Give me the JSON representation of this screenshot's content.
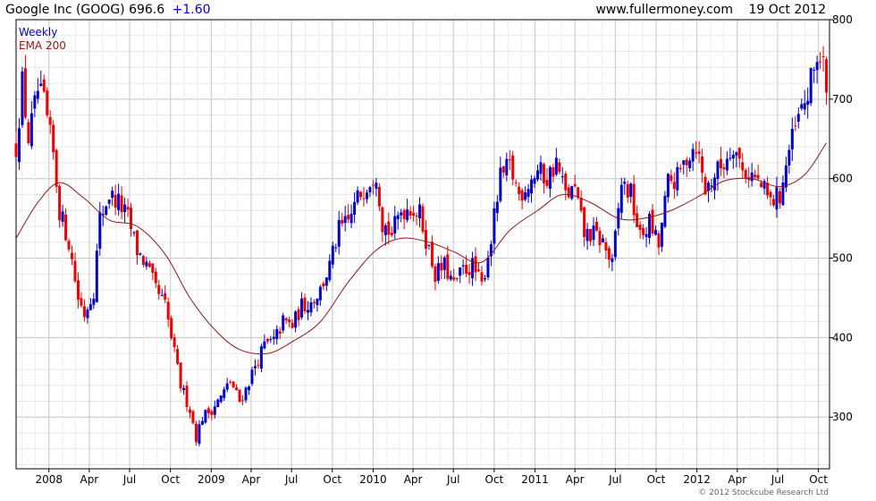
{
  "header": {
    "symbol_label": "Google Inc (GOOG) 696.6",
    "change": "+1.60",
    "source": "www.fullermoney.com",
    "date": "19 Oct 2012"
  },
  "legend": {
    "period": "Weekly",
    "indicator": "EMA 200"
  },
  "copyright": "© 2012 Stockcube Research Ltd",
  "colors": {
    "up": "#0000cc",
    "down": "#ee0000",
    "ema": "#8b1a1a",
    "grid": "#c8c8c8",
    "change": "#0000cc"
  },
  "chart_data": {
    "type": "candlestick",
    "title": "Google Inc (GOOG) 696.6 +1.60",
    "x_tick_labels": [
      "2008",
      "Apr",
      "Jul",
      "Oct",
      "2009",
      "Apr",
      "Jul",
      "Oct",
      "2010",
      "Apr",
      "Jul",
      "Oct",
      "2011",
      "Apr",
      "Jul",
      "Oct",
      "2012",
      "Apr",
      "Jul",
      "Oct"
    ],
    "x_tick_dates": [
      "2008-01-01",
      "2008-04-01",
      "2008-07-01",
      "2008-10-01",
      "2009-01-01",
      "2009-04-01",
      "2009-07-01",
      "2009-10-01",
      "2010-01-01",
      "2010-04-01",
      "2010-07-01",
      "2010-10-01",
      "2011-01-01",
      "2011-04-01",
      "2011-07-01",
      "2011-10-01",
      "2012-01-01",
      "2012-04-01",
      "2012-07-01",
      "2012-10-01"
    ],
    "x_range": [
      "2007-10-19",
      "2012-10-26"
    ],
    "y_ticks": [
      300,
      400,
      500,
      600,
      700,
      800
    ],
    "y_range": [
      235,
      800
    ],
    "y_axis_side": "right",
    "grid": true,
    "legend_position": "top-left",
    "price_path": [
      [
        "2007-10-19",
        640
      ],
      [
        "2007-11-02",
        720
      ],
      [
        "2007-11-16",
        650
      ],
      [
        "2007-12-07",
        710
      ],
      [
        "2007-12-21",
        695
      ],
      [
        "2008-01-11",
        630
      ],
      [
        "2008-01-25",
        560
      ],
      [
        "2008-02-15",
        520
      ],
      [
        "2008-03-07",
        450
      ],
      [
        "2008-03-21",
        430
      ],
      [
        "2008-04-11",
        460
      ],
      [
        "2008-04-25",
        550
      ],
      [
        "2008-05-16",
        580
      ],
      [
        "2008-06-06",
        570
      ],
      [
        "2008-06-27",
        550
      ],
      [
        "2008-07-18",
        510
      ],
      [
        "2008-08-08",
        490
      ],
      [
        "2008-08-29",
        460
      ],
      [
        "2008-09-19",
        440
      ],
      [
        "2008-10-10",
        380
      ],
      [
        "2008-10-24",
        340
      ],
      [
        "2008-11-14",
        310
      ],
      [
        "2008-11-28",
        275
      ],
      [
        "2008-12-12",
        300
      ],
      [
        "2009-01-02",
        310
      ],
      [
        "2009-01-23",
        325
      ],
      [
        "2009-02-13",
        345
      ],
      [
        "2009-03-06",
        320
      ],
      [
        "2009-03-20",
        335
      ],
      [
        "2009-04-10",
        365
      ],
      [
        "2009-05-01",
        390
      ],
      [
        "2009-05-22",
        395
      ],
      [
        "2009-06-12",
        420
      ],
      [
        "2009-07-03",
        415
      ],
      [
        "2009-07-24",
        440
      ],
      [
        "2009-08-14",
        445
      ],
      [
        "2009-09-04",
        460
      ],
      [
        "2009-09-25",
        490
      ],
      [
        "2009-10-16",
        535
      ],
      [
        "2009-11-06",
        545
      ],
      [
        "2009-11-27",
        575
      ],
      [
        "2009-12-18",
        595
      ],
      [
        "2010-01-08",
        610
      ],
      [
        "2010-01-22",
        545
      ],
      [
        "2010-02-12",
        530
      ],
      [
        "2010-03-05",
        560
      ],
      [
        "2010-03-26",
        565
      ],
      [
        "2010-04-16",
        555
      ],
      [
        "2010-04-30",
        525
      ],
      [
        "2010-05-21",
        480
      ],
      [
        "2010-06-11",
        490
      ],
      [
        "2010-07-02",
        465
      ],
      [
        "2010-07-23",
        485
      ],
      [
        "2010-08-13",
        490
      ],
      [
        "2010-09-03",
        465
      ],
      [
        "2010-09-24",
        525
      ],
      [
        "2010-10-15",
        600
      ],
      [
        "2010-11-05",
        615
      ],
      [
        "2010-11-26",
        580
      ],
      [
        "2010-12-17",
        595
      ],
      [
        "2011-01-07",
        610
      ],
      [
        "2011-01-28",
        600
      ],
      [
        "2011-02-18",
        620
      ],
      [
        "2011-03-11",
        580
      ],
      [
        "2011-04-01",
        585
      ],
      [
        "2011-04-22",
        530
      ],
      [
        "2011-05-13",
        530
      ],
      [
        "2011-06-03",
        520
      ],
      [
        "2011-06-24",
        490
      ],
      [
        "2011-07-15",
        595
      ],
      [
        "2011-08-05",
        580
      ],
      [
        "2011-08-26",
        525
      ],
      [
        "2011-09-16",
        545
      ],
      [
        "2011-10-07",
        515
      ],
      [
        "2011-10-28",
        595
      ],
      [
        "2011-11-18",
        600
      ],
      [
        "2011-12-09",
        627
      ],
      [
        "2011-12-30",
        645
      ],
      [
        "2012-01-20",
        585
      ],
      [
        "2012-02-10",
        605
      ],
      [
        "2012-03-02",
        620
      ],
      [
        "2012-03-23",
        645
      ],
      [
        "2012-04-13",
        610
      ],
      [
        "2012-05-04",
        605
      ],
      [
        "2012-05-25",
        590
      ],
      [
        "2012-06-15",
        570
      ],
      [
        "2012-07-06",
        580
      ],
      [
        "2012-07-27",
        635
      ],
      [
        "2012-08-17",
        675
      ],
      [
        "2012-09-07",
        705
      ],
      [
        "2012-09-28",
        755
      ],
      [
        "2012-10-12",
        745
      ],
      [
        "2012-10-19",
        696.6
      ]
    ],
    "ema_200": [
      [
        "2007-10-19",
        525
      ],
      [
        "2007-12-07",
        570
      ],
      [
        "2008-01-25",
        595
      ],
      [
        "2008-03-21",
        575
      ],
      [
        "2008-05-16",
        548
      ],
      [
        "2008-07-18",
        540
      ],
      [
        "2008-09-19",
        505
      ],
      [
        "2008-11-14",
        450
      ],
      [
        "2009-01-09",
        410
      ],
      [
        "2009-03-06",
        385
      ],
      [
        "2009-05-08",
        380
      ],
      [
        "2009-07-03",
        395
      ],
      [
        "2009-09-04",
        420
      ],
      [
        "2009-11-06",
        470
      ],
      [
        "2010-01-08",
        510
      ],
      [
        "2010-03-05",
        525
      ],
      [
        "2010-05-07",
        520
      ],
      [
        "2010-07-02",
        508
      ],
      [
        "2010-09-03",
        495
      ],
      [
        "2010-11-05",
        535
      ],
      [
        "2011-01-07",
        560
      ],
      [
        "2011-03-04",
        580
      ],
      [
        "2011-05-06",
        570
      ],
      [
        "2011-07-08",
        550
      ],
      [
        "2011-09-02",
        550
      ],
      [
        "2011-11-04",
        560
      ],
      [
        "2012-01-06",
        578
      ],
      [
        "2012-03-02",
        597
      ],
      [
        "2012-05-04",
        600
      ],
      [
        "2012-07-06",
        590
      ],
      [
        "2012-08-31",
        605
      ],
      [
        "2012-10-19",
        645
      ]
    ]
  }
}
